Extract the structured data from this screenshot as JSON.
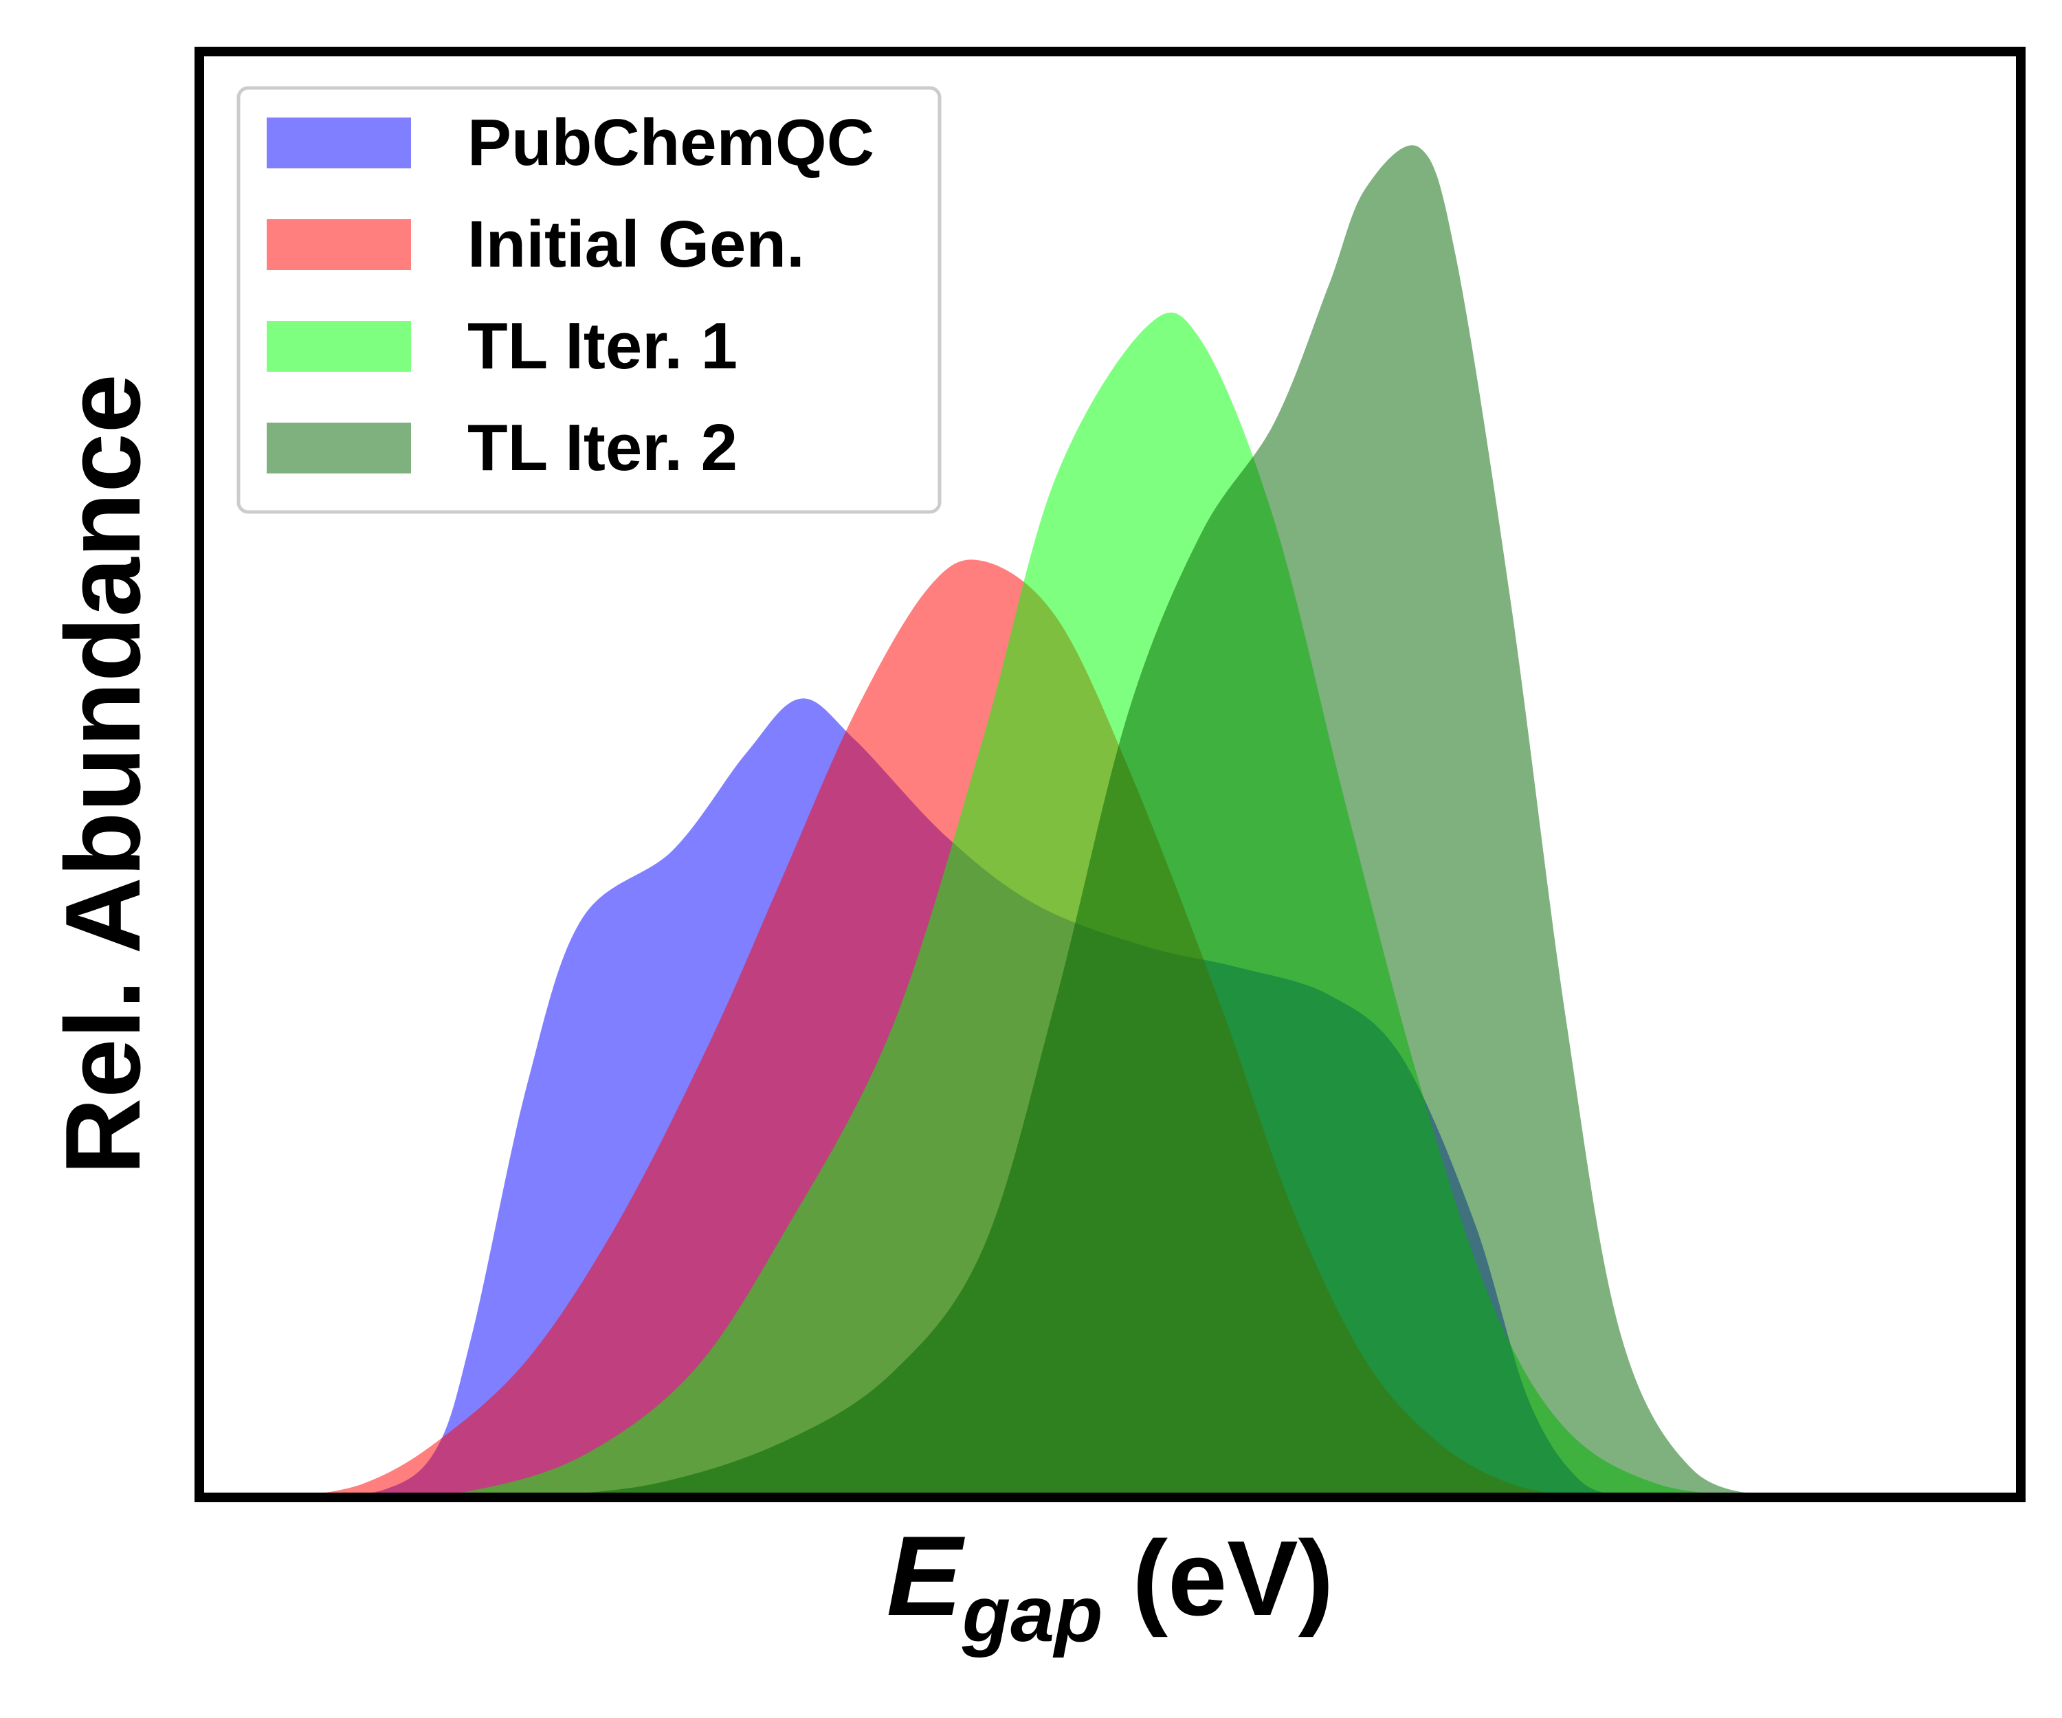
{
  "chart_data": {
    "type": "area",
    "title": "",
    "xlabel": {
      "main": "E",
      "subscript": "gap",
      "unit": "(eV)"
    },
    "ylabel": "Rel. Abundance",
    "xticks": [],
    "yticks": [],
    "xlim": [
      0,
      1
    ],
    "ylim": [
      0,
      1
    ],
    "grid": false,
    "legend": {
      "position": "top-left"
    },
    "series": [
      {
        "name": "PubChemQC",
        "color": "#0000ff",
        "opacity": 0.5,
        "points": [
          [
            0.05,
            0.0
          ],
          [
            0.1,
            0.005
          ],
          [
            0.13,
            0.035
          ],
          [
            0.15,
            0.12
          ],
          [
            0.18,
            0.3
          ],
          [
            0.21,
            0.42
          ],
          [
            0.26,
            0.47
          ],
          [
            0.3,
            0.54
          ],
          [
            0.33,
            0.58
          ],
          [
            0.36,
            0.55
          ],
          [
            0.41,
            0.48
          ],
          [
            0.46,
            0.43
          ],
          [
            0.52,
            0.4
          ],
          [
            0.57,
            0.385
          ],
          [
            0.62,
            0.365
          ],
          [
            0.66,
            0.32
          ],
          [
            0.7,
            0.2
          ],
          [
            0.73,
            0.07
          ],
          [
            0.76,
            0.01
          ],
          [
            0.79,
            0.0
          ]
        ]
      },
      {
        "name": "Initial Gen.",
        "color": "#ff0000",
        "opacity": 0.5,
        "points": [
          [
            0.05,
            0.0
          ],
          [
            0.09,
            0.01
          ],
          [
            0.13,
            0.04
          ],
          [
            0.18,
            0.1
          ],
          [
            0.23,
            0.2
          ],
          [
            0.28,
            0.33
          ],
          [
            0.32,
            0.45
          ],
          [
            0.36,
            0.57
          ],
          [
            0.4,
            0.66
          ],
          [
            0.43,
            0.68
          ],
          [
            0.47,
            0.64
          ],
          [
            0.51,
            0.53
          ],
          [
            0.56,
            0.36
          ],
          [
            0.6,
            0.21
          ],
          [
            0.64,
            0.1
          ],
          [
            0.68,
            0.04
          ],
          [
            0.72,
            0.01
          ],
          [
            0.76,
            0.0
          ]
        ]
      },
      {
        "name": "TL Iter. 1",
        "color": "#00ff00",
        "opacity": 0.5,
        "points": [
          [
            0.1,
            0.0
          ],
          [
            0.15,
            0.005
          ],
          [
            0.21,
            0.03
          ],
          [
            0.27,
            0.09
          ],
          [
            0.32,
            0.19
          ],
          [
            0.38,
            0.34
          ],
          [
            0.43,
            0.55
          ],
          [
            0.47,
            0.74
          ],
          [
            0.52,
            0.85
          ],
          [
            0.55,
            0.84
          ],
          [
            0.59,
            0.71
          ],
          [
            0.63,
            0.5
          ],
          [
            0.67,
            0.3
          ],
          [
            0.71,
            0.14
          ],
          [
            0.75,
            0.05
          ],
          [
            0.8,
            0.01
          ],
          [
            0.86,
            0.0
          ]
        ]
      },
      {
        "name": "TL Iter. 2",
        "color": "#006400",
        "opacity": 0.5,
        "points": [
          [
            0.18,
            0.0
          ],
          [
            0.25,
            0.01
          ],
          [
            0.32,
            0.04
          ],
          [
            0.38,
            0.09
          ],
          [
            0.43,
            0.18
          ],
          [
            0.47,
            0.36
          ],
          [
            0.51,
            0.57
          ],
          [
            0.55,
            0.7
          ],
          [
            0.59,
            0.78
          ],
          [
            0.62,
            0.88
          ],
          [
            0.64,
            0.95
          ],
          [
            0.67,
            0.98
          ],
          [
            0.69,
            0.9
          ],
          [
            0.72,
            0.65
          ],
          [
            0.75,
            0.35
          ],
          [
            0.78,
            0.12
          ],
          [
            0.82,
            0.02
          ],
          [
            0.87,
            0.0
          ]
        ]
      }
    ]
  }
}
